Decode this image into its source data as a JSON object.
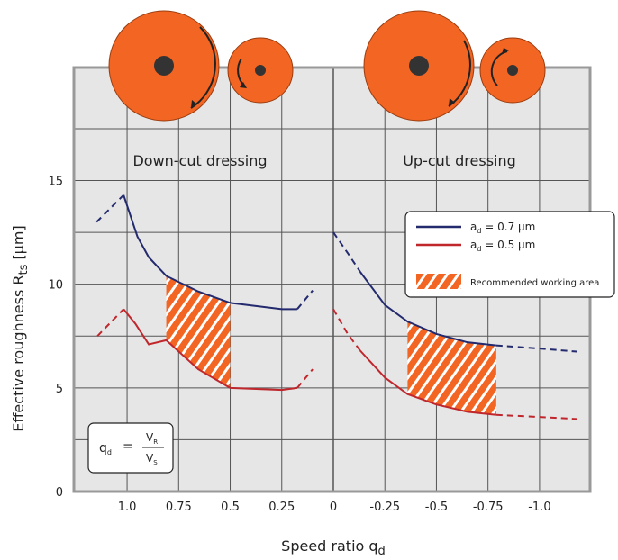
{
  "chart_data": {
    "type": "line",
    "panel_labels": [
      "Down-cut dressing",
      "Up-cut dressing"
    ],
    "y_label": {
      "text": "Effective roughness R",
      "sub": "ts",
      "rest": " [µm]"
    },
    "x_label": {
      "text": "Speed ratio q",
      "sub": "d"
    },
    "xlim": [
      1.258,
      -1.245
    ],
    "xticks": [
      {
        "value": 1,
        "label": "1.0"
      },
      0.75,
      0.5,
      0.25,
      0,
      -0.25,
      -0.5,
      -0.75,
      {
        "value": -1,
        "label": "-1.0"
      }
    ],
    "ylim": [
      0,
      20.45
    ],
    "yticks": [
      0,
      5,
      10,
      15
    ],
    "y_minor_grid": [
      2.5,
      7.5,
      12.5,
      17.5
    ],
    "grid": true,
    "series": [
      {
        "name": {
          "text": "a",
          "sub": "d",
          "rest": " = 0.7 µm"
        },
        "color": "#232a6e",
        "segments": [
          {
            "style": "dashed",
            "x": [
              1.148,
              1.017
            ],
            "values": [
              13.0,
              14.3
            ]
          },
          {
            "style": "solid",
            "x": [
              1.017,
              0.95,
              0.895,
              0.81,
              0.655,
              0.5,
              0.25,
              0.175
            ],
            "values": [
              14.3,
              12.3,
              11.3,
              10.4,
              9.65,
              9.1,
              8.8,
              8.8
            ]
          },
          {
            "style": "dashed",
            "x": [
              0.175,
              0.1
            ],
            "values": [
              8.8,
              9.7
            ]
          },
          {
            "style": "dashed",
            "x": [
              0,
              -0.07,
              -0.13
            ],
            "values": [
              12.5,
              11.5,
              10.6
            ]
          },
          {
            "style": "solid",
            "x": [
              -0.13,
              -0.25,
              -0.36,
              -0.5,
              -0.65,
              -0.79
            ],
            "values": [
              10.6,
              9.0,
              8.2,
              7.6,
              7.2,
              7.05
            ]
          },
          {
            "style": "dashed",
            "x": [
              -0.79,
              -1.0,
              -1.18
            ],
            "values": [
              7.05,
              6.9,
              6.75
            ]
          }
        ]
      },
      {
        "name": {
          "text": "a",
          "sub": "d",
          "rest": " = 0.5 µm"
        },
        "color": "#c0272d",
        "segments": [
          {
            "style": "dashed",
            "x": [
              1.144,
              1.017
            ],
            "values": [
              7.5,
              8.8
            ]
          },
          {
            "style": "solid",
            "x": [
              1.017,
              0.96,
              0.895,
              0.81,
              0.655,
              0.5,
              0.25,
              0.175
            ],
            "values": [
              8.8,
              8.1,
              7.1,
              7.3,
              5.9,
              5.0,
              4.9,
              5.0
            ]
          },
          {
            "style": "dashed",
            "x": [
              0.175,
              0.1
            ],
            "values": [
              5.0,
              5.9
            ]
          },
          {
            "style": "dashed",
            "x": [
              0,
              -0.07,
              -0.13
            ],
            "values": [
              8.8,
              7.6,
              6.8
            ]
          },
          {
            "style": "solid",
            "x": [
              -0.13,
              -0.25,
              -0.36,
              -0.5,
              -0.65,
              -0.79
            ],
            "values": [
              6.8,
              5.5,
              4.7,
              4.2,
              3.85,
              3.7
            ]
          },
          {
            "style": "dashed",
            "x": [
              -0.79,
              -1.0,
              -1.18
            ],
            "values": [
              3.7,
              3.6,
              3.5
            ]
          }
        ]
      }
    ],
    "recommended": {
      "label": "Recommended working area",
      "color": "#f26522",
      "ranges": [
        [
          0.81,
          0.5
        ],
        [
          -0.36,
          -0.79
        ]
      ]
    },
    "formula": {
      "lhs": "q",
      "lhs_sub": "d",
      "eq": "=",
      "num": "V",
      "num_sub": "R",
      "den": "V",
      "den_sub": "S"
    }
  }
}
